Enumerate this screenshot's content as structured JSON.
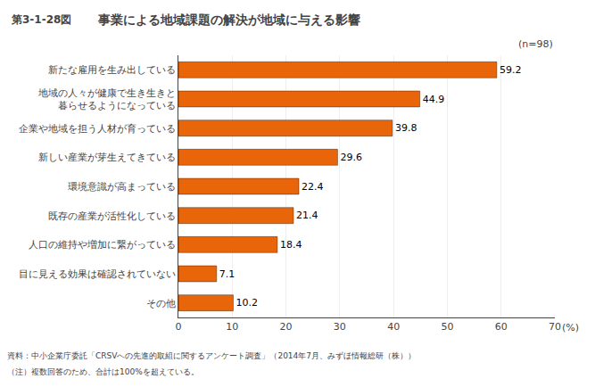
{
  "chart_data": {
    "type": "bar",
    "orientation": "horizontal",
    "title": "事業による地域課題の解決が地域に与える影響",
    "annotations": [
      "第3-1-28図",
      "(n=98)",
      "資料：中小企業庁委託「CRSVへの先進的取組に関するアンケート調査」（2014年7月、みずほ情報総研（株））",
      "（注）複数回答のため、合計は100%を超えている。"
    ],
    "xlabel": "(%)",
    "categories": [
      "新たな雇用を生み出している",
      "地域の人々が健康で生き生きと\n暮らせるようになっている",
      "企業や地域を担う人材が育っている",
      "新しい産業が芽生えてきている",
      "環境意識が高まっている",
      "既存の産業が活性化している",
      "人口の維持や増加に繋がっている",
      "目に見える効果は確認されていない",
      "その他"
    ],
    "values": [
      59.2,
      44.9,
      39.8,
      29.6,
      22.4,
      21.4,
      18.4,
      7.1,
      10.2
    ],
    "color": "#E8650A",
    "xlim": [
      0,
      70
    ],
    "xticks": [
      0,
      10,
      20,
      30,
      40,
      50,
      60,
      70
    ],
    "grid": true,
    "data_labels": true
  }
}
